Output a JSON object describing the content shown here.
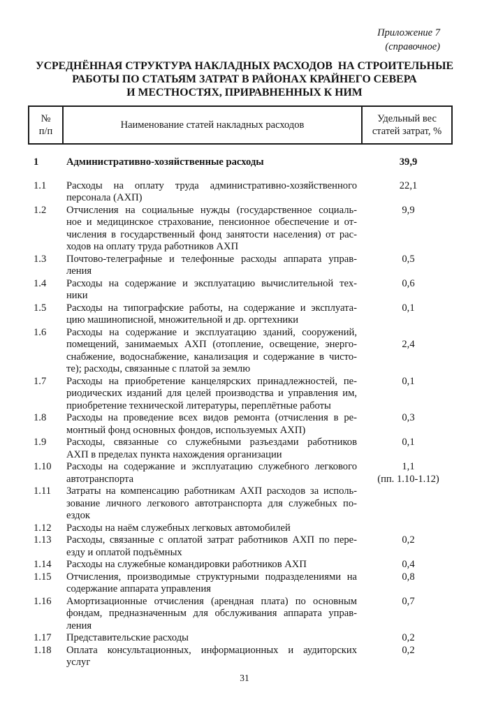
{
  "page": {
    "appendix_label": "Приложение 7",
    "appendix_note": "(справочное)",
    "title_lines": [
      "УСРЕДНЁННАЯ СТРУКТУРА НАКЛАДНЫХ РАСХОДОВ  НА СТРОИТЕЛЬНЫЕ",
      "РАБОТЫ ПО СТАТЬЯМ ЗАТРАТ В РАЙОНАХ КРАЙНЕГО СЕВЕРА",
      "И МЕСТНОСТЯХ, ПРИРАВНЕННЫХ К НИМ"
    ],
    "page_number": "31"
  },
  "table": {
    "header": {
      "num_lines": [
        "№",
        "п/п"
      ],
      "name_label": "Наименование статей накладных расходов",
      "weight_lines": [
        "Удельный вес",
        "статей затрат, %"
      ]
    },
    "rows": [
      {
        "num": "1",
        "lines": [
          "Административно-хозяйственные расходы"
        ],
        "value_lines": [
          "39,9"
        ]
      },
      {
        "num": "1.1",
        "lines": [
          "Расходы на оплату труда административно-хозяйственного",
          "персонала (АХП)"
        ],
        "value_lines": [
          "22,1"
        ]
      },
      {
        "num": "1.2",
        "lines": [
          "Отчисления на социальные нужды (государственное социаль-",
          "ное и медицинское страхование, пенсионное обеспечение и от-",
          "числения в государственный фонд занятости населения) от рас-",
          "ходов на оплату труда работников АХП"
        ],
        "value_lines": [
          "9,9"
        ]
      },
      {
        "num": "1.3",
        "lines": [
          "Почтово-телеграфные и телефонные расходы аппарата управ-",
          "ления"
        ],
        "value_lines": [
          "0,5"
        ]
      },
      {
        "num": "1.4",
        "lines": [
          "Расходы на содержание и эксплуатацию вычислительной тех-",
          "ники"
        ],
        "value_lines": [
          "0,6"
        ]
      },
      {
        "num": "1.5",
        "lines": [
          "Расходы на типографские работы, на содержание и эксплуата-",
          "цию машинописной, множительной и др. оргтехники"
        ],
        "value_lines": [
          "0,1"
        ]
      },
      {
        "num": "1.6",
        "lines": [
          "Расходы на содержание и эксплуатацию зданий, сооружений,",
          "помещений, занимаемых АХП (отопление, освещение, энерго-",
          "снабжение, водоснабжение, канализация и содержание в чисто-",
          "те); расходы, связанные с платой за землю"
        ],
        "value_lines": [
          "",
          "2,4"
        ]
      },
      {
        "num": "1.7",
        "lines": [
          "Расходы на приобретение канцелярских принадлежностей, пе-",
          "риодических изданий для целей производства и управления им,",
          "приобретение технической литературы, переплётные работы"
        ],
        "value_lines": [
          "0,1"
        ]
      },
      {
        "num": "1.8",
        "lines": [
          "Расходы на проведение всех видов ремонта (отчисления в ре-",
          "монтный фонд основных фондов, используемых АХП)"
        ],
        "value_lines": [
          "0,3"
        ]
      },
      {
        "num": "1.9",
        "lines": [
          "Расходы, связанные со служебными разъездами работников",
          "АХП в пределах пункта нахождения организации"
        ],
        "value_lines": [
          "0,1"
        ]
      },
      {
        "num": "1.10",
        "lines": [
          "Расходы на содержание и эксплуатацию служебного легкового",
          "автотранспорта"
        ],
        "value_lines": [
          "1,1",
          "(пп. 1.10-1.12)"
        ]
      },
      {
        "num": "1.11",
        "lines": [
          "Затраты на компенсацию работникам АХП расходов за исполь-",
          "зование личного легкового автотранспорта для служебных по-",
          "ездок"
        ],
        "value_lines": []
      },
      {
        "num": "1.12",
        "lines": [
          "Расходы на наём служебных легковых автомобилей"
        ],
        "value_lines": []
      },
      {
        "num": "1.13",
        "lines": [
          "Расходы, связанные с оплатой затрат работников АХП по пере-",
          "езду и оплатой подъёмных"
        ],
        "value_lines": [
          "0,2"
        ]
      },
      {
        "num": "1.14",
        "lines": [
          "Расходы на служебные командировки работников АХП"
        ],
        "value_lines": [
          "0,4"
        ]
      },
      {
        "num": "1.15",
        "lines": [
          "Отчисления, производимые структурными подразделениями на",
          "содержание аппарата управления"
        ],
        "value_lines": [
          "0,8"
        ]
      },
      {
        "num": "1.16",
        "lines": [
          "Амортизационные отчисления (арендная плата) по основным",
          "фондам, предназначенным для обслуживания аппарата управ-",
          "ления"
        ],
        "value_lines": [
          "0,7"
        ]
      },
      {
        "num": "1.17",
        "lines": [
          "Представительские расходы"
        ],
        "value_lines": [
          "0,2"
        ]
      },
      {
        "num": "1.18",
        "lines": [
          "Оплата консультационных, информационных и аудиторских",
          "услуг"
        ],
        "value_lines": [
          "0,2"
        ]
      }
    ]
  }
}
